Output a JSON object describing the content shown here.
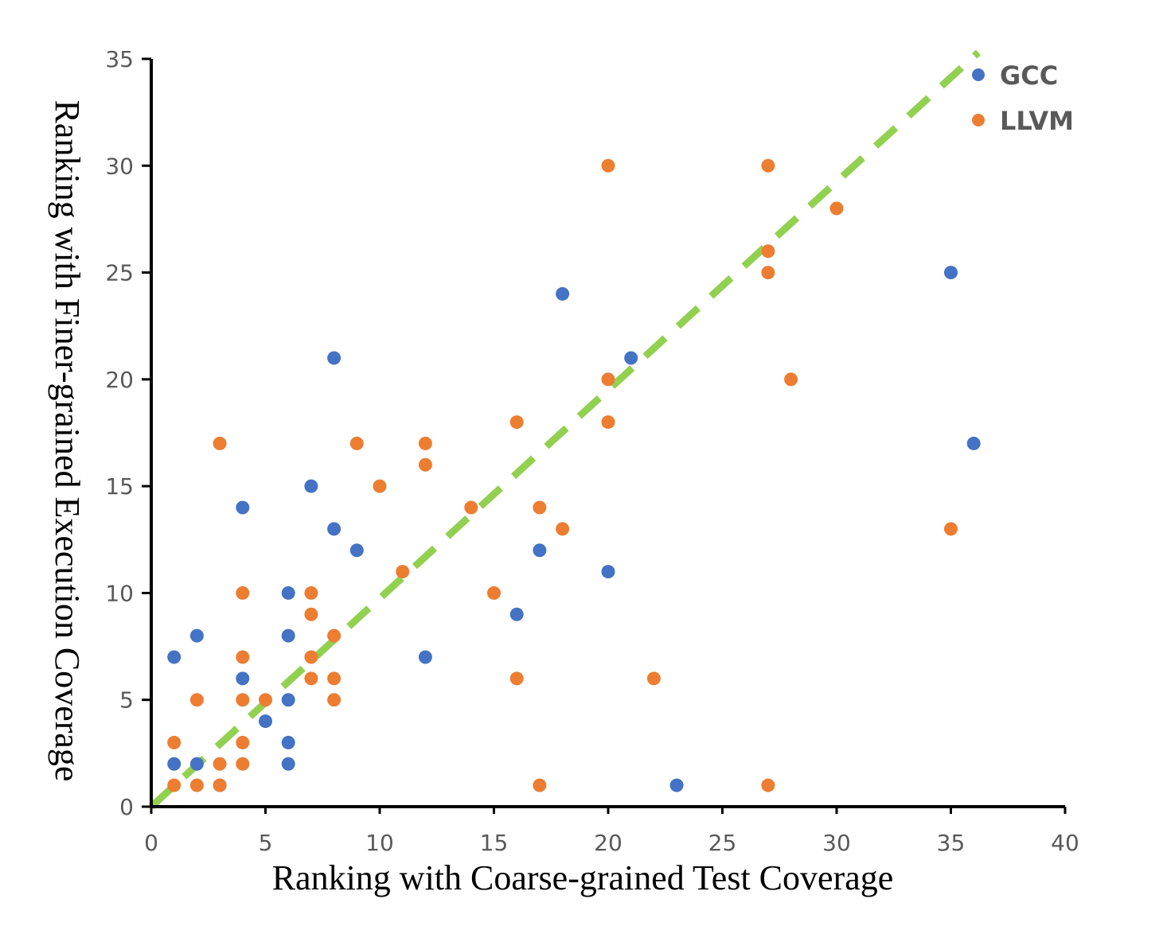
{
  "chart_data": {
    "type": "scatter",
    "title": "",
    "xlabel": "Ranking with Coarse-grained Test Coverage",
    "ylabel": "Ranking with Finer-grained Execution Coverage",
    "xlim": [
      0,
      40
    ],
    "ylim": [
      0,
      35
    ],
    "xticks": [
      0,
      5,
      10,
      15,
      20,
      25,
      30,
      35,
      40
    ],
    "yticks": [
      0,
      5,
      10,
      15,
      20,
      25,
      30,
      35
    ],
    "grid": false,
    "legend_position": "top-right",
    "reference_line": {
      "style": "dashed",
      "color": "#92D050",
      "from": [
        0,
        0
      ],
      "to": [
        36.2,
        35.3
      ]
    },
    "series": [
      {
        "name": "GCC",
        "color": "#4472C4",
        "points": [
          [
            1,
            7
          ],
          [
            1,
            2
          ],
          [
            2,
            8
          ],
          [
            2,
            2
          ],
          [
            3,
            1
          ],
          [
            4,
            14
          ],
          [
            4,
            6
          ],
          [
            5,
            4
          ],
          [
            6,
            10
          ],
          [
            6,
            8
          ],
          [
            6,
            5
          ],
          [
            6,
            3
          ],
          [
            6,
            2
          ],
          [
            7,
            15
          ],
          [
            8,
            21
          ],
          [
            8,
            13
          ],
          [
            9,
            12
          ],
          [
            12,
            7
          ],
          [
            16,
            9
          ],
          [
            17,
            12
          ],
          [
            18,
            24
          ],
          [
            20,
            11
          ],
          [
            21,
            21
          ],
          [
            23,
            1
          ],
          [
            35,
            25
          ],
          [
            36,
            17
          ]
        ]
      },
      {
        "name": "LLVM",
        "color": "#ED7D31",
        "points": [
          [
            1,
            3
          ],
          [
            1,
            1
          ],
          [
            2,
            5
          ],
          [
            2,
            1
          ],
          [
            3,
            17
          ],
          [
            3,
            2
          ],
          [
            3,
            1
          ],
          [
            4,
            10
          ],
          [
            4,
            7
          ],
          [
            4,
            5
          ],
          [
            4,
            3
          ],
          [
            4,
            2
          ],
          [
            5,
            5
          ],
          [
            7,
            10
          ],
          [
            7,
            9
          ],
          [
            7,
            7
          ],
          [
            7,
            6
          ],
          [
            8,
            8
          ],
          [
            8,
            6
          ],
          [
            8,
            5
          ],
          [
            9,
            17
          ],
          [
            10,
            15
          ],
          [
            11,
            11
          ],
          [
            12,
            17
          ],
          [
            12,
            16
          ],
          [
            14,
            14
          ],
          [
            15,
            10
          ],
          [
            16,
            18
          ],
          [
            16,
            6
          ],
          [
            17,
            14
          ],
          [
            17,
            1
          ],
          [
            18,
            13
          ],
          [
            20,
            30
          ],
          [
            20,
            20
          ],
          [
            20,
            18
          ],
          [
            22,
            6
          ],
          [
            27,
            30
          ],
          [
            27,
            26
          ],
          [
            27,
            25
          ],
          [
            27,
            1
          ],
          [
            28,
            20
          ],
          [
            30,
            28
          ],
          [
            35,
            13
          ]
        ]
      }
    ]
  }
}
